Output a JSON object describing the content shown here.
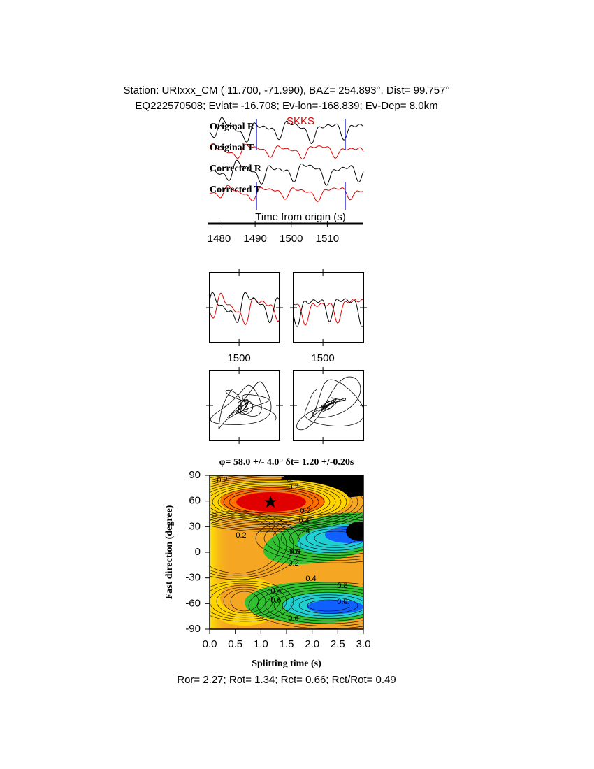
{
  "header": {
    "line1": "Station: URIxxx_CM (  11.700,  -71.990), BAZ=  254.893°, Dist=   99.757°",
    "line2": "EQ222570508; Evlat= -16.708; Ev-lon=-168.839; Ev-Dep=  8.0km"
  },
  "traces": {
    "labels": [
      "Original R",
      "Original T",
      "Corrected R",
      "Corrected T"
    ],
    "phase": "SKKS",
    "xlabel": "Time from origin (s)",
    "xlim": [
      1477,
      1520
    ],
    "xticks": [
      1480,
      1490,
      1500,
      1510
    ]
  },
  "panels": {
    "xlim": [
      1492,
      1511
    ],
    "xticks": [
      1500
    ]
  },
  "grid_search": {
    "title": "φ= 58.0 +/- 4.0° δt= 1.20 +/-0.20s",
    "xlabel": "Splitting time (s)",
    "ylabel": "Fast direction (degree)",
    "xlim": [
      0,
      3
    ],
    "ylim": [
      -90,
      90
    ],
    "xticks": [
      {
        "value": 0,
        "label": "0.0"
      },
      0.5,
      {
        "value": 1,
        "label": "1.0"
      },
      1.5,
      {
        "value": 2,
        "label": "2.0"
      },
      2.5,
      {
        "value": 3,
        "label": "3.0"
      }
    ],
    "yticks": [
      -90,
      -60,
      -30,
      0,
      30,
      60,
      90
    ],
    "contour_labels": [
      "0.2",
      "0.4",
      "0.2",
      "0.4",
      "0.2",
      "0.4",
      "0.2",
      "0.2",
      "0.2",
      "0.4",
      "0.6",
      "0.4",
      "0.6",
      "0.8",
      "0.8",
      "0.6"
    ]
  },
  "footer": "Ror= 2.27; Rot= 1.34; Rct= 0.66; Rct/Rot= 0.49"
}
